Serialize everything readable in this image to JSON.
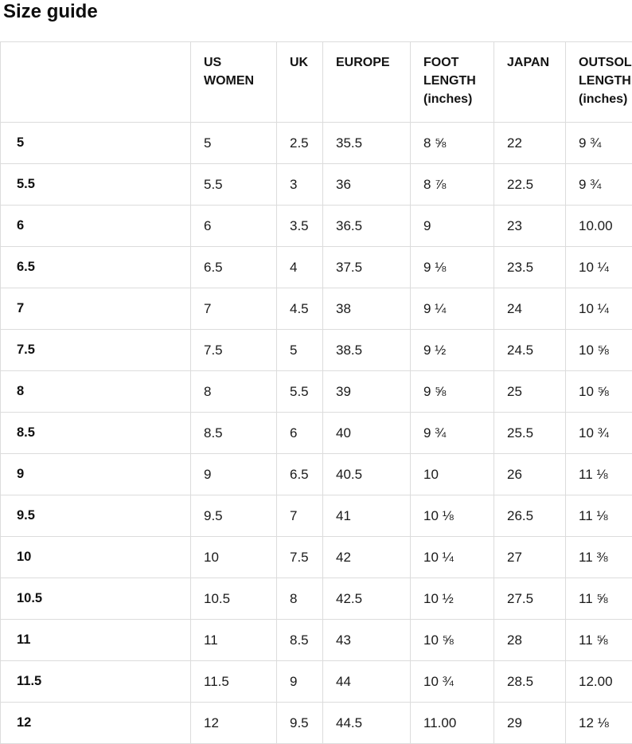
{
  "page": {
    "title": "Size guide"
  },
  "colors": {
    "text": "#111111",
    "border": "#dcdcdc",
    "background": "#ffffff"
  },
  "table": {
    "columns": [
      {
        "key": "size",
        "label": ""
      },
      {
        "key": "us_women",
        "label": "US WOMEN"
      },
      {
        "key": "uk",
        "label": "UK"
      },
      {
        "key": "europe",
        "label": "EUROPE"
      },
      {
        "key": "foot_length",
        "label": "FOOT LENGTH (inches)"
      },
      {
        "key": "japan",
        "label": "JAPAN"
      },
      {
        "key": "outsole_length",
        "label": "OUTSOLE LENGTH (inches)"
      }
    ],
    "rows": [
      {
        "size": "5",
        "us_women": "5",
        "uk": "2.5",
        "europe": "35.5",
        "foot_length": "8 ⅝",
        "japan": "22",
        "outsole_length": "9 ¾"
      },
      {
        "size": "5.5",
        "us_women": "5.5",
        "uk": "3",
        "europe": "36",
        "foot_length": "8 ⅞",
        "japan": "22.5",
        "outsole_length": "9 ¾"
      },
      {
        "size": "6",
        "us_women": "6",
        "uk": "3.5",
        "europe": "36.5",
        "foot_length": "9",
        "japan": "23",
        "outsole_length": "10.00"
      },
      {
        "size": "6.5",
        "us_women": "6.5",
        "uk": "4",
        "europe": "37.5",
        "foot_length": "9 ⅛",
        "japan": "23.5",
        "outsole_length": "10 ¼"
      },
      {
        "size": "7",
        "us_women": "7",
        "uk": "4.5",
        "europe": "38",
        "foot_length": "9 ¼",
        "japan": "24",
        "outsole_length": "10 ¼"
      },
      {
        "size": "7.5",
        "us_women": "7.5",
        "uk": "5",
        "europe": "38.5",
        "foot_length": "9 ½",
        "japan": "24.5",
        "outsole_length": "10 ⅝"
      },
      {
        "size": "8",
        "us_women": "8",
        "uk": "5.5",
        "europe": "39",
        "foot_length": "9 ⅝",
        "japan": "25",
        "outsole_length": "10 ⅝"
      },
      {
        "size": "8.5",
        "us_women": "8.5",
        "uk": "6",
        "europe": "40",
        "foot_length": "9 ¾",
        "japan": "25.5",
        "outsole_length": "10 ¾"
      },
      {
        "size": "9",
        "us_women": "9",
        "uk": "6.5",
        "europe": "40.5",
        "foot_length": "10",
        "japan": "26",
        "outsole_length": "11 ⅛"
      },
      {
        "size": "9.5",
        "us_women": "9.5",
        "uk": "7",
        "europe": "41",
        "foot_length": "10 ⅛",
        "japan": "26.5",
        "outsole_length": "11 ⅛"
      },
      {
        "size": "10",
        "us_women": "10",
        "uk": "7.5",
        "europe": "42",
        "foot_length": "10 ¼",
        "japan": "27",
        "outsole_length": "11 ⅜"
      },
      {
        "size": "10.5",
        "us_women": "10.5",
        "uk": "8",
        "europe": "42.5",
        "foot_length": "10 ½",
        "japan": "27.5",
        "outsole_length": "11 ⅝"
      },
      {
        "size": "11",
        "us_women": "11",
        "uk": "8.5",
        "europe": "43",
        "foot_length": "10 ⅝",
        "japan": "28",
        "outsole_length": "11 ⅝"
      },
      {
        "size": "11.5",
        "us_women": "11.5",
        "uk": "9",
        "europe": "44",
        "foot_length": "10 ¾",
        "japan": "28.5",
        "outsole_length": "12.00"
      },
      {
        "size": "12",
        "us_women": "12",
        "uk": "9.5",
        "europe": "44.5",
        "foot_length": "11.00",
        "japan": "29",
        "outsole_length": "12 ⅛"
      }
    ]
  }
}
